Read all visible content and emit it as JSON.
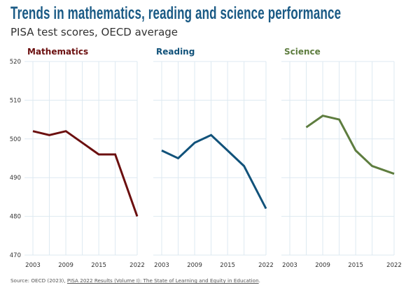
{
  "title": "Trends in mathematics, reading and science performance",
  "subtitle": "PISA test scores, OECD average",
  "source": {
    "prefix": "Source: OECD (2023), ",
    "link_text": "PISA 2022 Results (Volume I): The State of Learning and Equity in Education",
    "suffix": "."
  },
  "chart_data": {
    "type": "line",
    "layout": "small multiples, 3 panels, shared y-axis",
    "grid": true,
    "ylim": [
      470,
      520
    ],
    "yticks": [
      470,
      480,
      490,
      500,
      510,
      520
    ],
    "xlim": [
      2003,
      2022
    ],
    "xticks": [
      2003,
      2009,
      2015,
      2022
    ],
    "x_gridlines": [
      2003,
      2006,
      2009,
      2012,
      2015,
      2018,
      2022
    ],
    "panels": [
      {
        "name": "Mathematics",
        "color": "#6b0f0f",
        "x": [
          2003,
          2006,
          2009,
          2012,
          2015,
          2018,
          2022
        ],
        "y": [
          502,
          501,
          502,
          499,
          496,
          496,
          480
        ]
      },
      {
        "name": "Reading",
        "color": "#11527a",
        "x": [
          2003,
          2006,
          2009,
          2012,
          2015,
          2018,
          2022
        ],
        "y": [
          497,
          495,
          499,
          501,
          497,
          493,
          482
        ]
      },
      {
        "name": "Science",
        "color": "#5e7d3f",
        "x": [
          2006,
          2009,
          2012,
          2015,
          2018,
          2022
        ],
        "y": [
          503,
          506,
          505,
          497,
          493,
          491
        ]
      }
    ]
  }
}
